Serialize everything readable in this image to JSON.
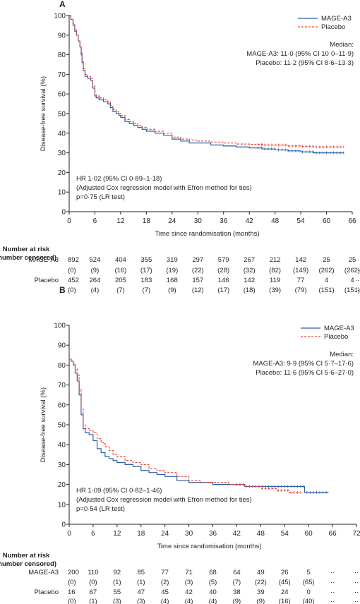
{
  "chart_data": [
    {
      "type": "line",
      "panel_label": "A",
      "xlabel": "Time since randomisation (months)",
      "ylabel": "Disease-free survival (%)",
      "xlim": [
        0,
        66
      ],
      "ylim": [
        0,
        100
      ],
      "x_ticks": [
        0,
        6,
        12,
        18,
        24,
        30,
        36,
        42,
        48,
        54,
        60,
        66
      ],
      "y_ticks": [
        0,
        10,
        20,
        30,
        40,
        50,
        60,
        70,
        80,
        90,
        100
      ],
      "legend": {
        "placement": "top-right",
        "items": [
          "MAGE-A3",
          "Placebo"
        ]
      },
      "median_block": [
        "Median:",
        "MAGE-A3: 11·0 (95% CI 10·0–11·9)",
        "Placebo: 11·2 (95% CI 8·6–13·3)"
      ],
      "annotation": [
        "HR 1·02 (95% CI 0·89–1·18)",
        "(Adjusted Cox regression model with Efron method for ties)",
        "p=0·75 (LR test)"
      ],
      "series": [
        {
          "name": "MAGE-A3",
          "color": "#2b5fa8",
          "dashed": false,
          "x": [
            0,
            0.4,
            0.9,
            1.3,
            1.7,
            2.1,
            2.5,
            2.8,
            3.0,
            3.3,
            3.7,
            4.3,
            5.0,
            5.5,
            6.0,
            6.3,
            7.0,
            8.0,
            9.0,
            9.6,
            10.2,
            11.0,
            11.6,
            12.0,
            13.0,
            14.0,
            15.0,
            16.0,
            17.0,
            18.0,
            20.0,
            22.0,
            24.0,
            26.0,
            28.0,
            30.0,
            33.0,
            36.0,
            39.0,
            42.0,
            45.0,
            48.0,
            51.0,
            54.0,
            57.0,
            60.0,
            63.0,
            64.0
          ],
          "y": [
            100,
            98,
            95,
            92,
            90,
            87,
            84,
            80,
            76,
            72,
            69,
            68,
            67,
            63,
            59,
            58,
            57,
            56,
            55,
            53,
            51,
            50,
            49,
            48,
            46,
            45,
            44,
            43,
            42,
            41,
            40,
            39,
            37,
            36,
            35,
            35,
            34,
            33.5,
            33,
            32.5,
            32,
            31.5,
            31,
            30.5,
            30,
            30,
            30,
            30
          ]
        },
        {
          "name": "Placebo",
          "color": "#e8443a",
          "dashed": true,
          "x": [
            0,
            0.4,
            0.9,
            1.3,
            1.7,
            2.1,
            2.5,
            2.8,
            3.0,
            3.3,
            3.7,
            4.3,
            5.0,
            5.5,
            6.0,
            6.3,
            7.0,
            8.0,
            9.0,
            9.6,
            10.2,
            11.0,
            11.6,
            12.0,
            13.0,
            14.0,
            15.0,
            16.0,
            17.0,
            18.0,
            20.0,
            22.0,
            24.0,
            26.0,
            28.0,
            30.0,
            33.0,
            36.0,
            39.0,
            42.0,
            45.0,
            48.0,
            51.0,
            54.0,
            57.0,
            60.0,
            62.0,
            64.0
          ],
          "y": [
            100,
            98,
            96,
            93,
            90,
            87,
            84,
            81,
            77,
            73,
            70,
            69,
            68,
            64,
            60,
            59,
            58,
            57,
            56,
            54,
            52,
            51,
            50,
            49,
            47,
            46,
            45,
            44,
            43,
            42,
            41,
            40,
            38,
            37,
            36.5,
            36,
            35.5,
            35,
            34.5,
            34.3,
            34,
            34,
            33.5,
            33.3,
            33,
            33,
            33,
            33
          ]
        }
      ],
      "risk_table": {
        "title": [
          "Number at risk",
          "(number censored)"
        ],
        "rows": [
          {
            "label": "MAGE-A3",
            "values": [
              "892",
              "524",
              "404",
              "355",
              "319",
              "297",
              "579",
              "267",
              "212",
              "142",
              "25",
              "25",
              "··"
            ]
          },
          {
            "label": "",
            "values": [
              "(0)",
              "(9)",
              "(16)",
              "(17)",
              "(19)",
              "(22)",
              "(28)",
              "(32)",
              "(82)",
              "(149)",
              "(262)",
              "(262)",
              "··"
            ]
          },
          {
            "label": "Placebo",
            "values": [
              "452",
              "264",
              "205",
              "183",
              "168",
              "157",
              "146",
              "142",
              "119",
              "77",
              "4",
              "4",
              "··"
            ]
          },
          {
            "label": "",
            "values": [
              "(0)",
              "(4)",
              "(7)",
              "(7)",
              "(9)",
              "(12)",
              "(17)",
              "(18)",
              "(39)",
              "(79)",
              "(151)",
              "(151)",
              "··"
            ]
          }
        ]
      }
    },
    {
      "type": "line",
      "panel_label": "B",
      "xlabel": "Time since randomisation (months)",
      "ylabel": "Disease-free survival (%)",
      "xlim": [
        0,
        72
      ],
      "ylim": [
        0,
        100
      ],
      "x_ticks": [
        0,
        6,
        12,
        18,
        24,
        30,
        36,
        42,
        48,
        54,
        60,
        66,
        72
      ],
      "y_ticks": [
        0,
        10,
        20,
        30,
        40,
        50,
        60,
        70,
        80,
        90,
        100
      ],
      "legend": {
        "placement": "top-right",
        "items": [
          "MAGE-A3",
          "Placebo"
        ]
      },
      "median_block": [
        "Median:",
        "MAGE-A3: 9·9 (95% CI 5·7–17·6)",
        "Placebo: 11·6 (95% CI 5·6–27·0)"
      ],
      "annotation": [
        "HR 1·09 (95% CI 0·82–1·46)",
        "(Adjusted Cox regression model with Efron method for ties)",
        "p=0·54 (LR test)"
      ],
      "series": [
        {
          "name": "MAGE-A3",
          "color": "#2b5fa8",
          "dashed": false,
          "x": [
            0,
            0.5,
            1.0,
            1.5,
            2.0,
            2.5,
            3.0,
            3.5,
            4.0,
            5.0,
            6.0,
            7.0,
            8.0,
            9.0,
            10.0,
            11.0,
            12.0,
            14.0,
            16.0,
            18.0,
            20.0,
            22.0,
            24.0,
            27.0,
            30.0,
            33.0,
            36.0,
            40.0,
            44.0,
            48.0,
            52.0,
            56.0,
            58.5,
            59.0,
            62.0,
            65.0
          ],
          "y": [
            83,
            82,
            80,
            76,
            72,
            65,
            55,
            48,
            46,
            45,
            42,
            38,
            36,
            34,
            33,
            32,
            31,
            30,
            29,
            27,
            26,
            25,
            24,
            22,
            21,
            21,
            20,
            20,
            19,
            19,
            19,
            19,
            19,
            16,
            16,
            16
          ]
        },
        {
          "name": "Placebo",
          "color": "#e8443a",
          "dashed": true,
          "x": [
            0,
            0.5,
            1.0,
            1.5,
            2.0,
            2.5,
            3.0,
            3.5,
            4.0,
            5.0,
            6.0,
            7.0,
            8.0,
            9.0,
            10.0,
            11.0,
            12.0,
            14.0,
            16.0,
            18.0,
            20.0,
            22.0,
            24.0,
            27.0,
            30.0,
            33.0,
            36.0,
            40.0,
            44.0,
            48.0,
            52.0,
            55.0,
            58.0
          ],
          "y": [
            83,
            82,
            81,
            78,
            75,
            68,
            58,
            50,
            48,
            47,
            46,
            43,
            41,
            39,
            37,
            35,
            34,
            32,
            31,
            30,
            28,
            27,
            26,
            24,
            22,
            21,
            21,
            20,
            19,
            18,
            17,
            16,
            16
          ]
        }
      ],
      "risk_table": {
        "title": [
          "Number at risk",
          "(number censored)"
        ],
        "rows": [
          {
            "label": "MAGE-A3",
            "values": [
              "200",
              "110",
              "92",
              "85",
              "77",
              "71",
              "68",
              "64",
              "49",
              "26",
              "5",
              "··",
              "··"
            ]
          },
          {
            "label": "",
            "values": [
              "(0)",
              "(0)",
              "(1)",
              "(1)",
              "(2)",
              "(3)",
              "(5)",
              "(7)",
              "(22)",
              "(45)",
              "(65)",
              "··",
              "··"
            ]
          },
          {
            "label": "Placebo",
            "values": [
              "16",
              "67",
              "55",
              "47",
              "45",
              "42",
              "40",
              "38",
              "39",
              "24",
              "0",
              "··",
              "··"
            ]
          },
          {
            "label": "",
            "values": [
              "(0)",
              "(1)",
              "(3)",
              "(3)",
              "(4)",
              "(4)",
              "(4)",
              "(9)",
              "(9)",
              "(16)",
              "(40)",
              "··",
              "··"
            ]
          }
        ]
      }
    }
  ]
}
